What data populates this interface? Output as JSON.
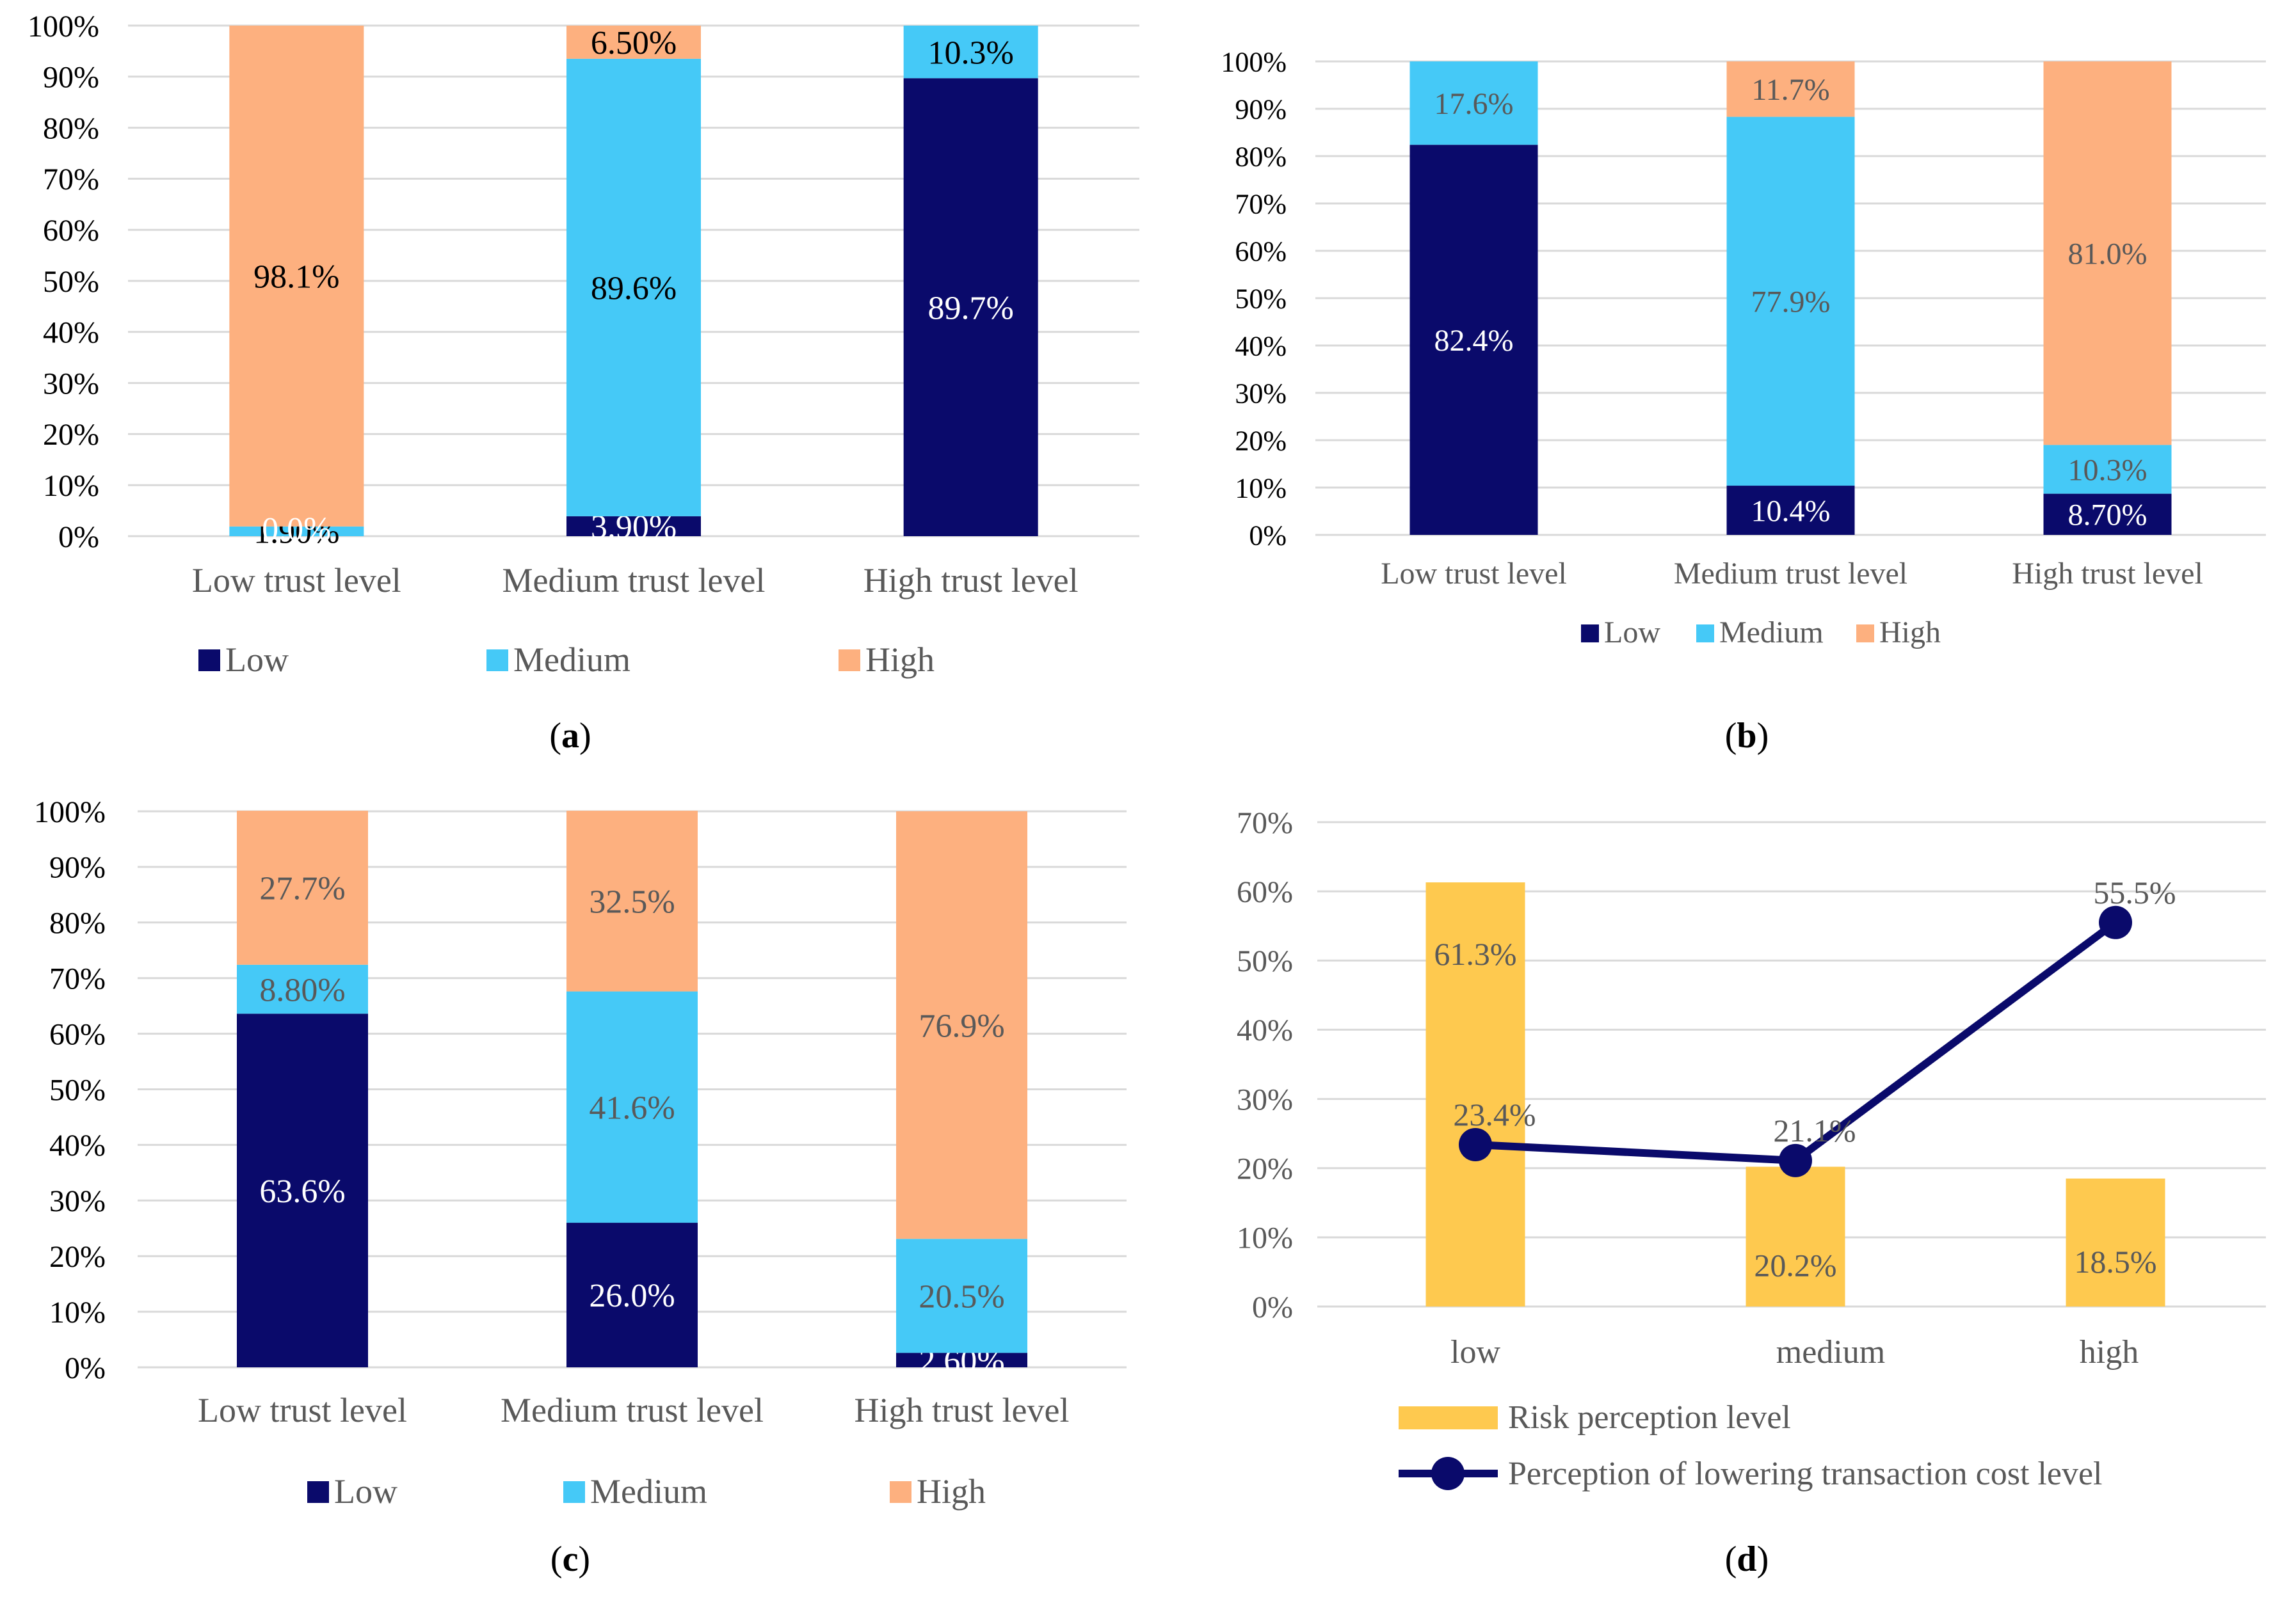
{
  "colors": {
    "low": "#0a0a6b",
    "medium": "#45c9f7",
    "high": "#fdb07f",
    "risk": "#fec94f",
    "line": "#0a0a6b",
    "grid": "#d9d9d9",
    "axis_text_dark": "#000000",
    "axis_text_gray": "#595959"
  },
  "panels": {
    "a": {
      "caption_letter": "a"
    },
    "b": {
      "caption_letter": "b"
    },
    "c": {
      "caption_letter": "c"
    },
    "d": {
      "caption_letter": "d"
    }
  },
  "chart_data": [
    {
      "id": "a",
      "type": "bar",
      "stacked": true,
      "categories": [
        "Low trust level",
        "Medium trust level",
        "High trust level"
      ],
      "series": [
        {
          "name": "Low",
          "values": [
            0.0,
            3.9,
            89.7
          ],
          "labels": [
            "",
            "3.90%",
            "89.7%"
          ]
        },
        {
          "name": "Medium",
          "values": [
            1.9,
            89.6,
            10.3
          ],
          "labels": [
            "1.90%",
            "89.6%",
            "10.3%"
          ]
        },
        {
          "name": "High",
          "values": [
            98.1,
            6.5,
            0.0
          ],
          "labels": [
            "98.1%",
            "6.50%",
            ""
          ]
        }
      ],
      "extra_labels": [
        "0.0%"
      ],
      "yticks": [
        "0%",
        "10%",
        "20%",
        "30%",
        "40%",
        "50%",
        "60%",
        "70%",
        "80%",
        "90%",
        "100%"
      ],
      "ylim": [
        0,
        100
      ],
      "legend": [
        "Low",
        "Medium",
        "High"
      ]
    },
    {
      "id": "b",
      "type": "bar",
      "stacked": true,
      "categories": [
        "Low trust level",
        "Medium trust level",
        "High trust level"
      ],
      "series": [
        {
          "name": "Low",
          "values": [
            82.4,
            10.4,
            8.7
          ],
          "labels": [
            "82.4%",
            "10.4%",
            "8.70%"
          ]
        },
        {
          "name": "Medium",
          "values": [
            17.6,
            77.9,
            10.3
          ],
          "labels": [
            "17.6%",
            "77.9%",
            "10.3%"
          ]
        },
        {
          "name": "High",
          "values": [
            0.0,
            11.7,
            81.0
          ],
          "labels": [
            "",
            "11.7%",
            "81.0%"
          ]
        }
      ],
      "yticks": [
        "0%",
        "10%",
        "20%",
        "30%",
        "40%",
        "50%",
        "60%",
        "70%",
        "80%",
        "90%",
        "100%"
      ],
      "ylim": [
        0,
        100
      ],
      "legend": [
        "Low",
        "Medium",
        "High"
      ]
    },
    {
      "id": "c",
      "type": "bar",
      "stacked": true,
      "categories": [
        "Low trust level",
        "Medium trust level",
        "High trust level"
      ],
      "series": [
        {
          "name": "Low",
          "values": [
            63.6,
            26.0,
            2.6
          ],
          "labels": [
            "63.6%",
            "26.0%",
            "2.60%"
          ]
        },
        {
          "name": "Medium",
          "values": [
            8.8,
            41.6,
            20.5
          ],
          "labels": [
            "8.80%",
            "41.6%",
            "20.5%"
          ]
        },
        {
          "name": "High",
          "values": [
            27.7,
            32.5,
            76.9
          ],
          "labels": [
            "27.7%",
            "32.5%",
            "76.9%"
          ]
        }
      ],
      "yticks": [
        "0%",
        "10%",
        "20%",
        "30%",
        "40%",
        "50%",
        "60%",
        "70%",
        "80%",
        "90%",
        "100%"
      ],
      "ylim": [
        0,
        100
      ],
      "legend": [
        "Low",
        "Medium",
        "High"
      ]
    },
    {
      "id": "d",
      "type": "bar",
      "categories": [
        "low",
        "medium",
        "high"
      ],
      "series": [
        {
          "name": "Risk perception level",
          "kind": "bar",
          "values": [
            61.3,
            20.2,
            18.5
          ],
          "labels": [
            "61.3%",
            "20.2%",
            "18.5%"
          ]
        },
        {
          "name": "Perception of lowering transaction cost level",
          "kind": "line",
          "values": [
            23.4,
            21.1,
            55.5
          ],
          "labels": [
            "23.4%",
            "21.1%",
            "55.5%"
          ]
        }
      ],
      "yticks": [
        "0%",
        "10%",
        "20%",
        "30%",
        "40%",
        "50%",
        "60%",
        "70%"
      ],
      "ylim": [
        0,
        70
      ],
      "legend": [
        "Risk perception level",
        "Perception of lowering transaction cost level"
      ]
    }
  ]
}
